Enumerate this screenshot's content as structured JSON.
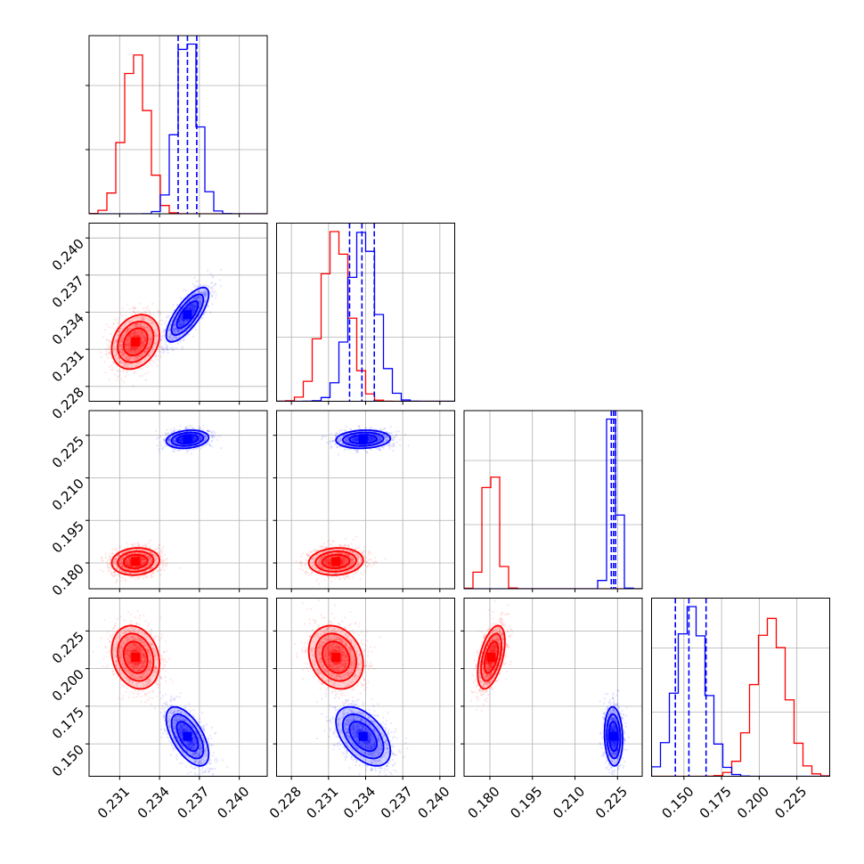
{
  "chart_data": {
    "type": "corner",
    "parameters": 4,
    "series": [
      {
        "color": "#ff0000",
        "means": [
          0.2322,
          0.2316,
          0.1805,
          0.2075
        ],
        "sds": [
          0.0009,
          0.0011,
          0.0024,
          0.0105
        ],
        "corr": [
          [
            1,
            0.25,
            0.1,
            -0.2
          ],
          [
            0.25,
            1,
            0.1,
            -0.2
          ],
          [
            0.1,
            0.1,
            1,
            0.5
          ],
          [
            -0.2,
            -0.2,
            0.5,
            1
          ]
        ]
      },
      {
        "color": "#0000ff",
        "means": [
          0.2361,
          0.2338,
          0.2236,
          0.155
        ],
        "sds": [
          0.0008,
          0.0011,
          0.0016,
          0.0098
        ],
        "corr": [
          [
            1,
            0.75,
            0.2,
            -0.6
          ],
          [
            0.75,
            1,
            0.1,
            -0.5
          ],
          [
            0.2,
            0.1,
            1,
            -0.1
          ],
          [
            -0.6,
            -0.5,
            -0.1,
            1
          ]
        ],
        "quantiles": [
          [
            0.2354,
            0.2361,
            0.2368
          ],
          [
            0.2327,
            0.2337,
            0.2347
          ],
          [
            0.2228,
            0.2236,
            0.2243
          ],
          [
            0.1443,
            0.1533,
            0.1647
          ]
        ]
      }
    ],
    "axes": [
      {
        "range": [
          0.2287,
          0.2421
        ],
        "ticks": [
          0.231,
          0.234,
          0.237,
          0.24
        ],
        "tick_labels": [
          "0.231",
          "0.234",
          "0.237",
          "0.240"
        ]
      },
      {
        "range": [
          0.2268,
          0.2412
        ],
        "ticks": [
          0.228,
          0.231,
          0.234,
          0.237,
          0.24
        ],
        "tick_labels": [
          "0.228",
          "0.231",
          "0.234",
          "0.237",
          "0.240"
        ]
      },
      {
        "range": [
          0.1709,
          0.2337
        ],
        "ticks": [
          0.18,
          0.195,
          0.21,
          0.225
        ],
        "tick_labels": [
          "0.180",
          "0.195",
          "0.210",
          "0.225"
        ]
      },
      {
        "range": [
          0.1285,
          0.2468
        ],
        "ticks": [
          0.15,
          0.175,
          0.2,
          0.225
        ],
        "tick_labels": [
          "0.150",
          "0.175",
          "0.200",
          "0.225"
        ]
      }
    ],
    "grid": true,
    "legend": "none",
    "title": "",
    "xlabel": "",
    "ylabel": ""
  }
}
